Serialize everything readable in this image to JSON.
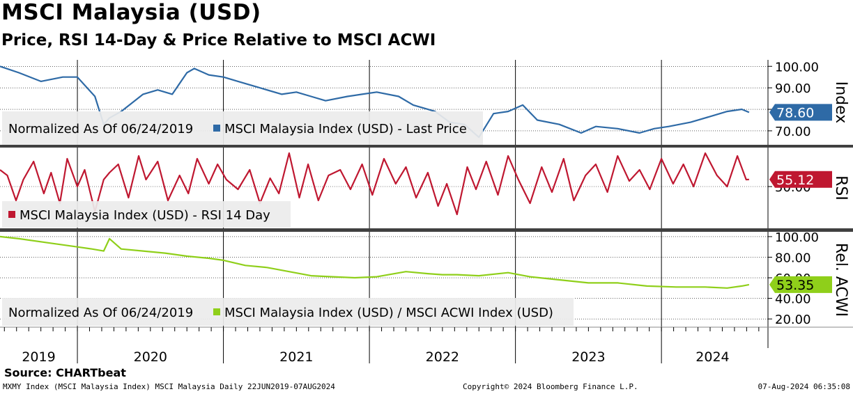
{
  "header": {
    "title": "MSCI Malaysia (USD)",
    "subtitle": "Price, RSI 14-Day & Price Relative to MSCI ACWI"
  },
  "footer": {
    "source": "Source: CHARTbeat",
    "ticker_info": "MXMY Index (MSCI Malaysia Index) MSCI Malaysia  Daily 22JUN2019-07AUG2024",
    "copyright": "Copyright© 2024 Bloomberg Finance L.P.",
    "timestamp": "07-Aug-2024 06:35:08"
  },
  "colors": {
    "price": "#2e6aa6",
    "rsi": "#bf1730",
    "relative": "#8fcf1a",
    "legend_bg": "#ebebeb",
    "separator": "#404040"
  },
  "chart_data": [
    {
      "type": "line",
      "panel": "price",
      "axis_label": "Index",
      "legend_prefix": "Normalized As Of 06/24/2019",
      "legend_series": "MSCI Malaysia Index (USD) - Last Price",
      "last_value_label": "78.60",
      "y_ticks": [
        70,
        80,
        90,
        100
      ],
      "y_tick_labels": [
        "70.00",
        "",
        "90.00",
        "100.00"
      ],
      "ylim": [
        63.5,
        103
      ],
      "x": [
        2019.47,
        2019.6,
        2019.75,
        2019.9,
        2020.0,
        2020.12,
        2020.18,
        2020.22,
        2020.3,
        2020.45,
        2020.55,
        2020.65,
        2020.75,
        2020.8,
        2020.9,
        2021.0,
        2021.1,
        2021.25,
        2021.4,
        2021.5,
        2021.6,
        2021.7,
        2021.85,
        2021.95,
        2022.05,
        2022.2,
        2022.3,
        2022.45,
        2022.55,
        2022.65,
        2022.75,
        2022.85,
        2022.95,
        2023.05,
        2023.15,
        2023.3,
        2023.45,
        2023.55,
        2023.7,
        2023.85,
        2023.95,
        2024.05,
        2024.2,
        2024.35,
        2024.45,
        2024.55,
        2024.6
      ],
      "values": [
        100,
        97,
        93,
        95,
        95,
        86,
        73,
        76,
        79,
        87,
        89,
        87,
        97,
        99,
        96,
        95,
        93,
        90,
        87,
        88,
        86,
        84,
        86,
        87,
        88,
        86,
        82,
        79,
        74,
        73,
        67,
        78,
        79,
        82,
        75,
        73,
        69,
        72,
        71,
        69,
        71,
        72,
        74,
        77,
        79,
        80,
        78.6
      ]
    },
    {
      "type": "line",
      "panel": "rsi",
      "axis_label": "RSI",
      "legend_series": "MSCI Malaysia Index (USD) - RSI 14 Day",
      "last_value_label": "55.12",
      "y_ticks": [
        50
      ],
      "y_tick_labels": [
        "50.00"
      ],
      "ylim": [
        20,
        78
      ],
      "x": [
        2019.47,
        2019.52,
        2019.58,
        2019.63,
        2019.7,
        2019.77,
        2019.82,
        2019.88,
        2019.93,
        2020.0,
        2020.05,
        2020.12,
        2020.18,
        2020.22,
        2020.28,
        2020.35,
        2020.42,
        2020.47,
        2020.55,
        2020.62,
        2020.7,
        2020.76,
        2020.82,
        2020.9,
        2020.96,
        2021.02,
        2021.1,
        2021.18,
        2021.25,
        2021.32,
        2021.38,
        2021.45,
        2021.52,
        2021.58,
        2021.65,
        2021.72,
        2021.8,
        2021.87,
        2021.95,
        2022.02,
        2022.1,
        2022.18,
        2022.25,
        2022.32,
        2022.4,
        2022.47,
        2022.53,
        2022.6,
        2022.67,
        2022.73,
        2022.8,
        2022.88,
        2022.95,
        2023.02,
        2023.1,
        2023.18,
        2023.25,
        2023.33,
        2023.4,
        2023.48,
        2023.55,
        2023.63,
        2023.7,
        2023.78,
        2023.85,
        2023.92,
        2024.0,
        2024.08,
        2024.15,
        2024.22,
        2024.3,
        2024.38,
        2024.45,
        2024.52,
        2024.58,
        2024.6
      ],
      "values": [
        62,
        58,
        40,
        55,
        68,
        45,
        60,
        38,
        70,
        50,
        62,
        32,
        55,
        60,
        66,
        42,
        72,
        55,
        68,
        40,
        58,
        45,
        70,
        52,
        66,
        55,
        48,
        62,
        38,
        56,
        45,
        74,
        42,
        66,
        40,
        58,
        62,
        48,
        66,
        44,
        70,
        52,
        64,
        42,
        60,
        36,
        52,
        30,
        64,
        48,
        68,
        44,
        72,
        55,
        38,
        64,
        46,
        70,
        40,
        58,
        66,
        46,
        72,
        54,
        62,
        48,
        70,
        52,
        66,
        50,
        74,
        58,
        50,
        72,
        55,
        55.12
      ]
    },
    {
      "type": "line",
      "panel": "relative",
      "axis_label": "Rel. ACWI",
      "legend_prefix": "Normalized As Of 06/24/2019",
      "legend_series": "MSCI Malaysia Index (USD) / MSCI ACWI Index (USD)",
      "last_value_label": "53.35",
      "y_ticks": [
        20,
        40,
        60,
        80,
        100
      ],
      "y_tick_labels": [
        "20.00",
        "40.00",
        "60.00",
        "80.00",
        "100.00"
      ],
      "ylim": [
        12,
        104
      ],
      "x": [
        2019.47,
        2019.6,
        2019.8,
        2020.0,
        2020.1,
        2020.18,
        2020.22,
        2020.3,
        2020.45,
        2020.6,
        2020.75,
        2020.9,
        2021.0,
        2021.15,
        2021.3,
        2021.45,
        2021.6,
        2021.75,
        2021.9,
        2022.05,
        2022.25,
        2022.4,
        2022.5,
        2022.6,
        2022.75,
        2022.95,
        2023.1,
        2023.3,
        2023.5,
        2023.7,
        2023.9,
        2024.1,
        2024.3,
        2024.45,
        2024.55,
        2024.6
      ],
      "values": [
        100,
        98,
        94,
        90,
        88,
        86,
        98,
        88,
        86,
        84,
        81,
        79,
        77,
        72,
        70,
        66,
        62,
        61,
        60,
        61,
        66,
        64,
        63,
        63,
        62,
        65,
        61,
        58,
        55,
        55,
        52,
        51,
        51,
        50,
        52,
        53.35
      ]
    }
  ],
  "x_axis": {
    "year_labels": [
      "2019",
      "2020",
      "2021",
      "2022",
      "2023",
      "2024"
    ]
  }
}
